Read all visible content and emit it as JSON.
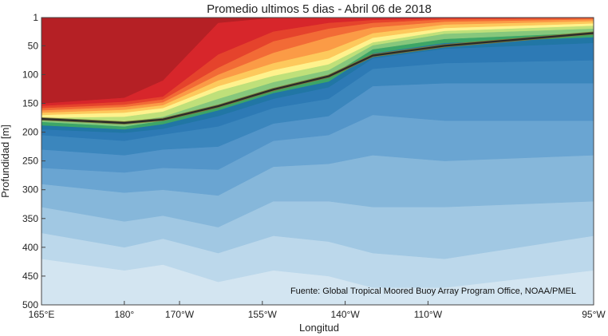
{
  "chart_data": {
    "type": "area",
    "title": "Promedio ultimos 5 dias - Abril 06 de 2018",
    "xlabel": "Longitud",
    "ylabel": "Profundidad [m]",
    "source_note": "Fuente: Global Tropical Moored Buoy Array Program Office, NOAA/PMEL",
    "x_ticks": [
      {
        "value": 165,
        "label": "165°E"
      },
      {
        "value": 180,
        "label": "180°"
      },
      {
        "value": 190,
        "label": "170°W"
      },
      {
        "value": 205,
        "label": "155°W"
      },
      {
        "value": 220,
        "label": "140°W"
      },
      {
        "value": 235,
        "label": "110°W"
      },
      {
        "value": 265,
        "label": "95°W"
      }
    ],
    "y_ticks": [
      {
        "value": 1,
        "label": "1"
      },
      {
        "value": 50,
        "label": "50"
      },
      {
        "value": 100,
        "label": "100"
      },
      {
        "value": 150,
        "label": "150"
      },
      {
        "value": 200,
        "label": "200"
      },
      {
        "value": 250,
        "label": "250"
      },
      {
        "value": 300,
        "label": "300"
      },
      {
        "value": 350,
        "label": "350"
      },
      {
        "value": 400,
        "label": "400"
      },
      {
        "value": 450,
        "label": "450"
      },
      {
        "value": 500,
        "label": "500"
      }
    ],
    "xlim": [
      165,
      265
    ],
    "ylim": [
      500,
      1
    ],
    "x_stations": [
      165,
      180,
      187,
      197,
      207,
      217,
      225,
      238,
      265
    ],
    "bands": [
      {
        "color": "#b52025",
        "boundary": [
          150,
          140,
          110,
          10,
          1,
          1,
          1,
          1,
          1
        ]
      },
      {
        "color": "#d7262b",
        "boundary": [
          154,
          147,
          138,
          65,
          25,
          10,
          5,
          2,
          1
        ]
      },
      {
        "color": "#e5432c",
        "boundary": [
          158,
          152,
          143,
          88,
          42,
          20,
          10,
          4,
          2
        ]
      },
      {
        "color": "#f26b36",
        "boundary": [
          162,
          156,
          148,
          100,
          62,
          35,
          18,
          8,
          4
        ]
      },
      {
        "color": "#fb9b46",
        "boundary": [
          166,
          161,
          153,
          110,
          80,
          58,
          28,
          13,
          7
        ]
      },
      {
        "color": "#fdc95c",
        "boundary": [
          170,
          166,
          158,
          120,
          92,
          72,
          36,
          19,
          11
        ]
      },
      {
        "color": "#fef28d",
        "boundary": [
          175,
          173,
          164,
          128,
          102,
          82,
          44,
          24,
          15
        ]
      },
      {
        "color": "#bfe07a",
        "boundary": [
          177,
          183,
          173,
          142,
          113,
          92,
          49,
          29,
          20
        ]
      },
      {
        "color": "#86c77c",
        "boundary": [
          182,
          190,
          180,
          155,
          125,
          104,
          56,
          38,
          27
        ]
      },
      {
        "color": "#3da567",
        "boundary": [
          188,
          195,
          186,
          162,
          132,
          112,
          63,
          45,
          35
        ]
      },
      {
        "color": "#2176a5",
        "boundary": [
          195,
          201,
          194,
          172,
          142,
          122,
          72,
          55,
          45
        ]
      },
      {
        "color": "#2d7ab5",
        "boundary": [
          205,
          215,
          204,
          190,
          158,
          142,
          90,
          80,
          75
        ]
      },
      {
        "color": "#3b86bd",
        "boundary": [
          230,
          240,
          230,
          225,
          185,
          172,
          120,
          115,
          115
        ]
      },
      {
        "color": "#5395c9",
        "boundary": [
          262,
          270,
          262,
          265,
          215,
          205,
          170,
          180,
          180
        ]
      },
      {
        "color": "#6aa5d2",
        "boundary": [
          290,
          305,
          300,
          310,
          260,
          255,
          240,
          250,
          240
        ]
      },
      {
        "color": "#86b7da",
        "boundary": [
          330,
          355,
          345,
          365,
          320,
          320,
          330,
          330,
          320
        ]
      },
      {
        "color": "#a1c8e3",
        "boundary": [
          375,
          400,
          385,
          410,
          380,
          390,
          410,
          420,
          380
        ]
      },
      {
        "color": "#bcd8eb",
        "boundary": [
          420,
          440,
          430,
          460,
          440,
          450,
          470,
          470,
          440
        ]
      },
      {
        "color": "#d3e5f1",
        "boundary": [
          500,
          500,
          500,
          500,
          500,
          500,
          500,
          500,
          500
        ]
      }
    ],
    "thermocline_line": {
      "color": "#2a2a2a",
      "x": [
        165,
        180,
        187,
        197,
        207,
        217,
        225,
        238,
        265
      ],
      "y": [
        177,
        184,
        178,
        155,
        126,
        103,
        67,
        50,
        28
      ]
    },
    "grid": false,
    "legend": "none"
  }
}
